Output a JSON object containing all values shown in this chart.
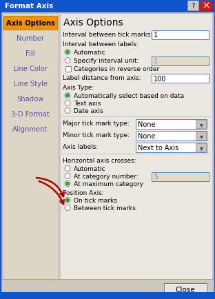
{
  "title": "Format Axis",
  "title_bg": "#1055CC",
  "title_fg": "#FFFFFF",
  "sidebar_items": [
    "Axis Options",
    "Number",
    "Fill",
    "Line Color",
    "Line Style",
    "Shadow",
    "3-D Format",
    "Alignment"
  ],
  "sidebar_selected": "Axis Options",
  "sidebar_selected_bg": "#F0920A",
  "sidebar_selected_fg": "#000000",
  "sidebar_fg": "#5555AA",
  "sidebar_bg": "#DDD5C5",
  "content_bg": "#EAE8E0",
  "outer_bg": "#CEC8BE",
  "body_bg": "#CEC8BE",
  "tick_marks_value": "1",
  "label_distance_value": "100",
  "specify_interval_value": "1",
  "at_category_value": "5",
  "major_tick_value": "None",
  "minor_tick_value": "None",
  "axis_labels_value": "Next to Axis",
  "radio_green": "#22AA22",
  "arrow_color": "#AA0000",
  "figsize": [
    3.12,
    4.35
  ],
  "dpi": 100
}
